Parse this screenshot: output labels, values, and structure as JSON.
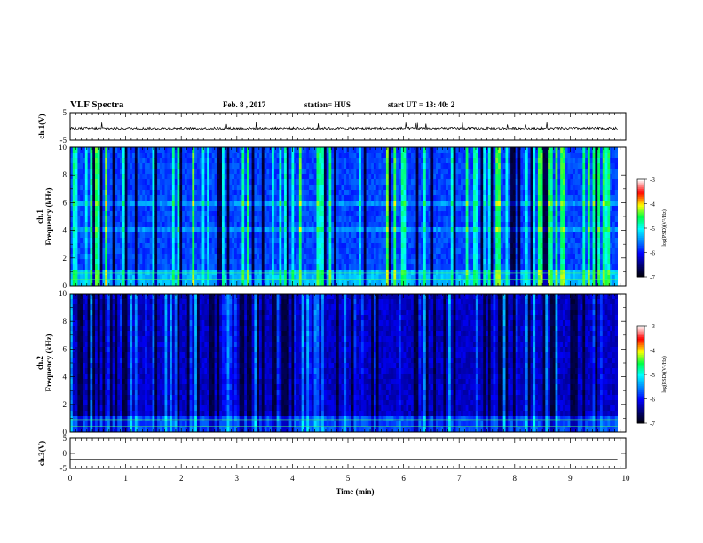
{
  "header": {
    "title": "VLF Spectra",
    "date": "Feb. 8 , 2017",
    "station": "station= HUS",
    "start": "start  UT =   13: 40: 2"
  },
  "chart_data": [
    {
      "type": "line",
      "panel": "ch1-waveform",
      "ylabel": "ch.1(V)",
      "ylim": [
        -5,
        5
      ],
      "yticks": [
        "5",
        "-5"
      ],
      "series": [
        {
          "values_summary": "noisy waveform near -0.7 V with spikes up to +2 V"
        }
      ]
    },
    {
      "type": "heatmap",
      "panel": "ch1-spectrogram",
      "ylabel": "ch.1\nFrequency (kHz)",
      "ylim": [
        0,
        10
      ],
      "yticks": [
        "0",
        "2",
        "4",
        "6",
        "8",
        "10"
      ],
      "colorbar": {
        "label": "log(PSD)(V²/Hz)",
        "range": [
          -7,
          -3
        ],
        "ticks": [
          "-3",
          "-4",
          "-5",
          "-6",
          "-7"
        ],
        "colors": [
          "#000000",
          "#00007a",
          "#0000ff",
          "#0090ff",
          "#00ffff",
          "#00ff40",
          "#ffff00",
          "#ff0000",
          "#ffffff"
        ]
      }
    },
    {
      "type": "heatmap",
      "panel": "ch2-spectrogram",
      "ylabel": "ch.2\nFrequency (kHz)",
      "ylim": [
        0,
        10
      ],
      "yticks": [
        "0",
        "2",
        "4",
        "6",
        "8",
        "10"
      ],
      "colorbar": {
        "label": "log(PSD)(V²/Hz)",
        "range": [
          -7,
          -3
        ],
        "ticks": [
          "-3",
          "-4",
          "-5",
          "-6",
          "-7"
        ]
      }
    },
    {
      "type": "line",
      "panel": "ch3-waveform",
      "ylabel": "ch.3(V)",
      "ylim": [
        -5,
        5
      ],
      "yticks": [
        "5",
        "0",
        "-5"
      ],
      "series": [
        {
          "values_summary": "flat line at about -2 V"
        }
      ]
    }
  ],
  "x_axis": {
    "label": "Time (min)",
    "range": [
      0,
      10
    ],
    "ticks": [
      "0",
      "1",
      "2",
      "3",
      "4",
      "5",
      "6",
      "7",
      "8",
      "9",
      "10"
    ]
  }
}
